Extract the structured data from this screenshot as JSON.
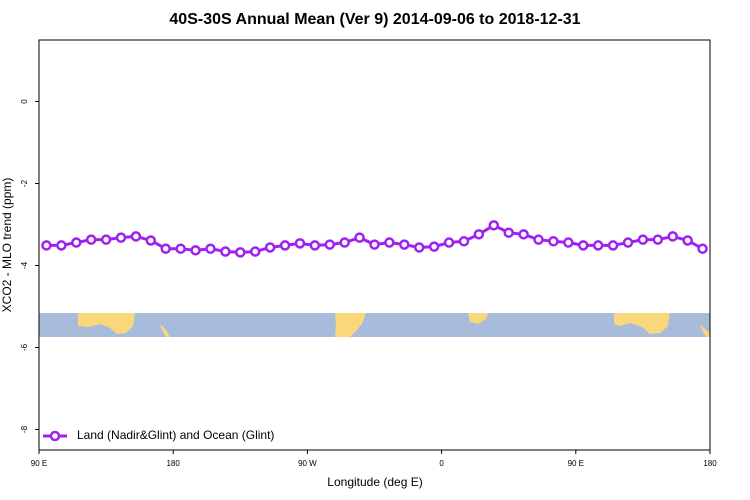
{
  "chart_data": {
    "type": "line",
    "title": "40S-30S Annual Mean (Ver 9)   2014-09-06 to 2018-12-31",
    "xlabel": "Longitude (deg E)",
    "ylabel": "XCO2 - MLO trend (ppm)",
    "x": [
      95,
      105,
      115,
      125,
      135,
      145,
      155,
      165,
      175,
      185,
      195,
      205,
      215,
      225,
      235,
      245,
      255,
      265,
      275,
      285,
      295,
      305,
      315,
      325,
      335,
      345,
      355,
      365,
      375,
      385,
      395,
      405,
      415,
      425,
      435,
      445,
      455,
      465,
      475,
      485,
      495,
      505,
      515,
      525,
      535
    ],
    "series": [
      {
        "name": "Land (Nadir&Glint) and Ocean (Glint)",
        "color": "#a020f0",
        "values": [
          -3.51,
          -3.51,
          -3.44,
          -3.37,
          -3.37,
          -3.32,
          -3.29,
          -3.39,
          -3.59,
          -3.59,
          -3.63,
          -3.59,
          -3.66,
          -3.68,
          -3.66,
          -3.56,
          -3.51,
          -3.46,
          -3.51,
          -3.49,
          -3.44,
          -3.32,
          -3.49,
          -3.44,
          -3.49,
          -3.56,
          -3.54,
          -3.44,
          -3.41,
          -3.24,
          -3.02,
          -3.2,
          -3.24,
          -3.37,
          -3.41,
          -3.44,
          -3.51,
          -3.51,
          -3.51,
          -3.44,
          -3.37,
          -3.37,
          -3.29,
          -3.39,
          -3.59
        ]
      }
    ],
    "xlim": [
      90,
      540
    ],
    "xticks": [
      {
        "value": 90,
        "label": "90 E"
      },
      180,
      {
        "value": 270,
        "label": "90 W"
      },
      {
        "value": 360,
        "label": "0"
      },
      {
        "value": 450,
        "label": "90 E"
      },
      {
        "value": 540,
        "label": "180"
      }
    ],
    "ylim": [
      -8.5,
      1.5
    ],
    "yticks": [
      0,
      -2,
      -4,
      -6,
      -8
    ],
    "legend": "bottom-left"
  }
}
